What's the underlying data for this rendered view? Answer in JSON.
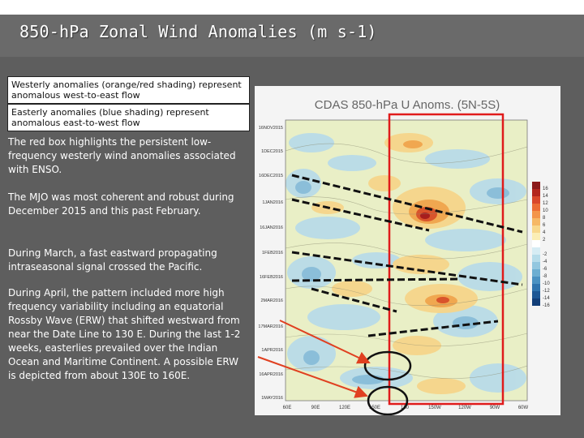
{
  "slide": {
    "title": "850-hPa Zonal Wind Anomalies (m s-1)",
    "legend": {
      "westerly": "Westerly anomalies (orange/red shading) represent anomalous west-to-east flow",
      "easterly": "Easterly anomalies (blue shading) represent anomalous east-to-west flow"
    },
    "paragraphs": [
      "The red box highlights the persistent low-frequency westerly wind anomalies associated with ENSO.",
      "The MJO was most coherent and robust during December 2015 and this past February.",
      "During March, a fast eastward propagating intraseasonal signal crossed the Pacific.",
      "During April, the pattern included more high frequency variability including an equatorial Rossby Wave (ERW) that shifted westward from near the Date Line to 130 E. During the last 1-2 weeks, easterlies prevailed over the Indian Ocean and Maritime Continent. A possible ERW is depicted from about 130E to 160E."
    ]
  },
  "figure": {
    "title": "CDAS 850-hPa U Anoms. (5N-5S)",
    "date_labels": [
      "16NOV2015",
      "1DEC2015",
      "16DEC2015",
      "1JAN2016",
      "16JAN2016",
      "1FEB2016",
      "16FEB2016",
      "2MAR2016",
      "17MAR2016",
      "1APR2016",
      "16APR2016",
      "1MAY2016"
    ],
    "lon_labels": [
      "60E",
      "90E",
      "120E",
      "150E",
      "180",
      "150W",
      "120W",
      "90W",
      "60W"
    ],
    "colorbar_labels": [
      "16",
      "14",
      "12",
      "10",
      "8",
      "6",
      "4",
      "2",
      "-2",
      "-4",
      "-6",
      "-8",
      "-10",
      "-12",
      "-14",
      "-16"
    ],
    "colors": {
      "highlight_box": "#e01b1b",
      "arrow": "#e04020",
      "phase_line": "#111111",
      "circle": "#111111"
    }
  }
}
